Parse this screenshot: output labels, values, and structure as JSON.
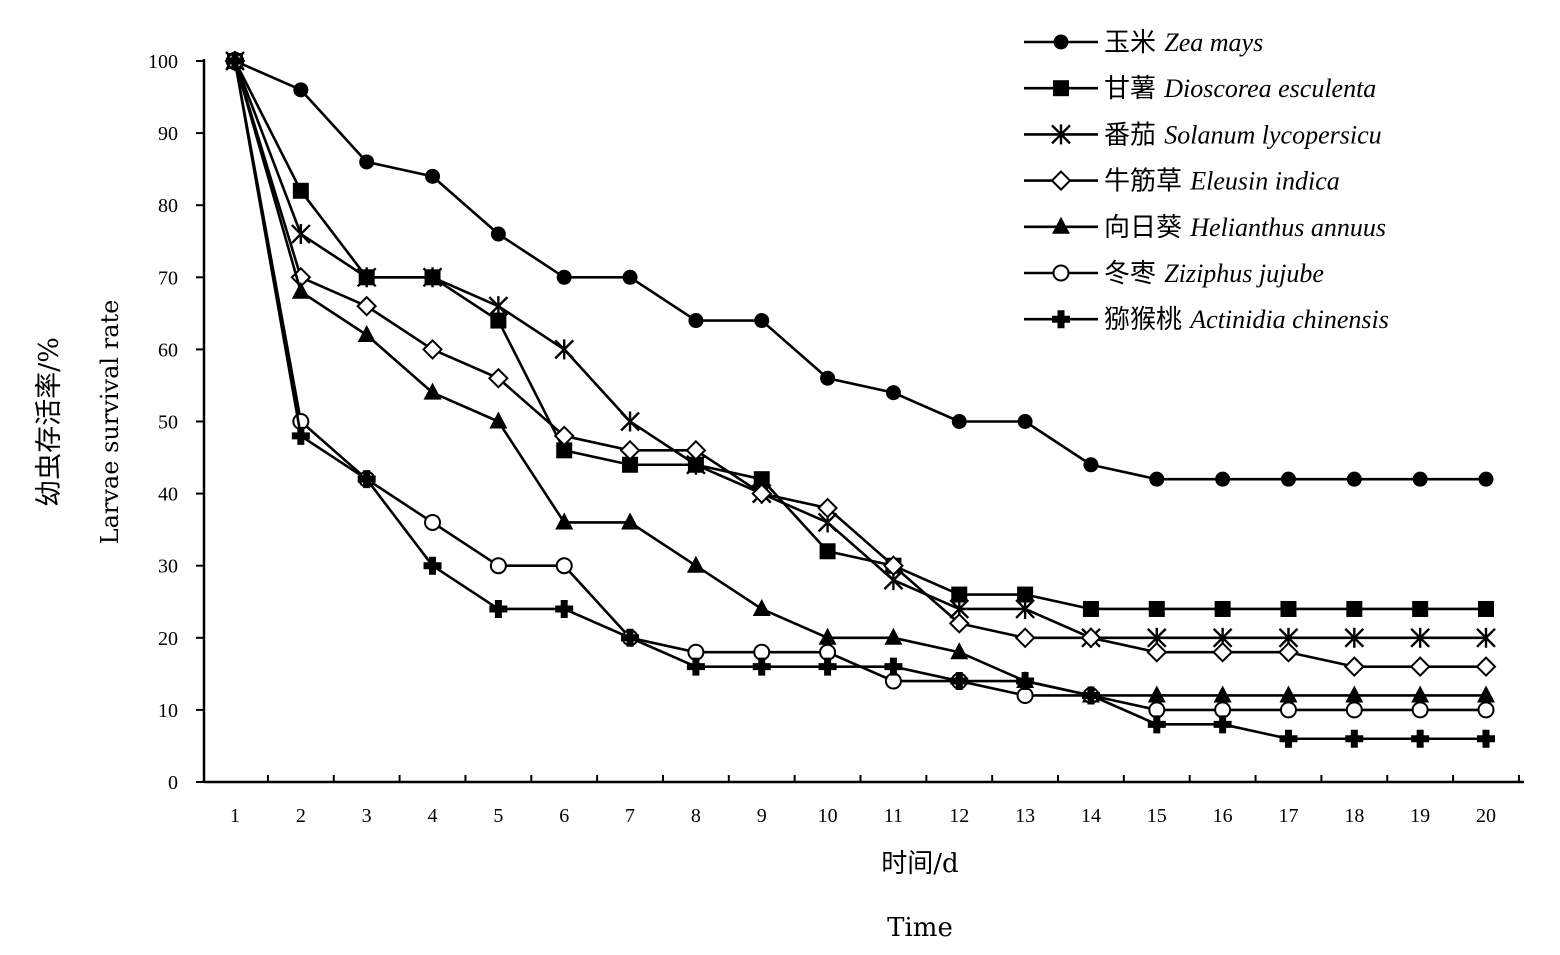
{
  "chart_data": {
    "type": "line",
    "title": "",
    "xlabel_cn": "时间/d",
    "xlabel_en": "Time",
    "ylabel_cn": "幼虫存活率/%",
    "ylabel_en": "Larvae survival rate",
    "xlim": [
      1,
      20
    ],
    "ylim": [
      0,
      100
    ],
    "ytick_step": 10,
    "grid": false,
    "legend_placement": "top-right",
    "x": [
      1,
      2,
      3,
      4,
      5,
      6,
      7,
      8,
      9,
      10,
      11,
      12,
      13,
      14,
      15,
      16,
      17,
      18,
      19,
      20
    ],
    "series": [
      {
        "name_cn": "玉米",
        "name_sci": "Zea mays",
        "marker": "filled-circle",
        "values": [
          100,
          96,
          86,
          84,
          76,
          70,
          70,
          64,
          64,
          56,
          54,
          50,
          50,
          44,
          42,
          42,
          42,
          42,
          42,
          42
        ]
      },
      {
        "name_cn": "甘薯",
        "name_sci": "Dioscorea esculenta",
        "marker": "filled-square",
        "values": [
          100,
          82,
          70,
          70,
          64,
          46,
          44,
          44,
          42,
          32,
          30,
          26,
          26,
          24,
          24,
          24,
          24,
          24,
          24,
          24
        ]
      },
      {
        "name_cn": "番茄",
        "name_sci": "Solanum lycopersicu",
        "marker": "asterisk",
        "values": [
          100,
          76,
          70,
          70,
          66,
          60,
          50,
          44,
          40,
          36,
          28,
          24,
          24,
          20,
          20,
          20,
          20,
          20,
          20,
          20
        ]
      },
      {
        "name_cn": "牛筋草",
        "name_sci": "Eleusin indica",
        "marker": "open-diamond",
        "values": [
          100,
          70,
          66,
          60,
          56,
          48,
          46,
          46,
          40,
          38,
          30,
          22,
          20,
          20,
          18,
          18,
          18,
          16,
          16,
          16
        ]
      },
      {
        "name_cn": "向日葵",
        "name_sci": "Helianthus annuus",
        "marker": "filled-triangle",
        "values": [
          100,
          68,
          62,
          54,
          50,
          36,
          36,
          30,
          24,
          20,
          20,
          18,
          14,
          12,
          12,
          12,
          12,
          12,
          12,
          12
        ]
      },
      {
        "name_cn": "冬枣",
        "name_sci": "Ziziphus jujube",
        "marker": "open-circle",
        "values": [
          100,
          50,
          42,
          36,
          30,
          30,
          20,
          18,
          18,
          18,
          14,
          14,
          12,
          12,
          10,
          10,
          10,
          10,
          10,
          10
        ]
      },
      {
        "name_cn": "猕猴桃",
        "name_sci": "Actinidia chinensis",
        "marker": "plus",
        "values": [
          100,
          48,
          42,
          30,
          24,
          24,
          20,
          16,
          16,
          16,
          16,
          14,
          14,
          12,
          8,
          8,
          6,
          6,
          6,
          6
        ]
      }
    ]
  }
}
